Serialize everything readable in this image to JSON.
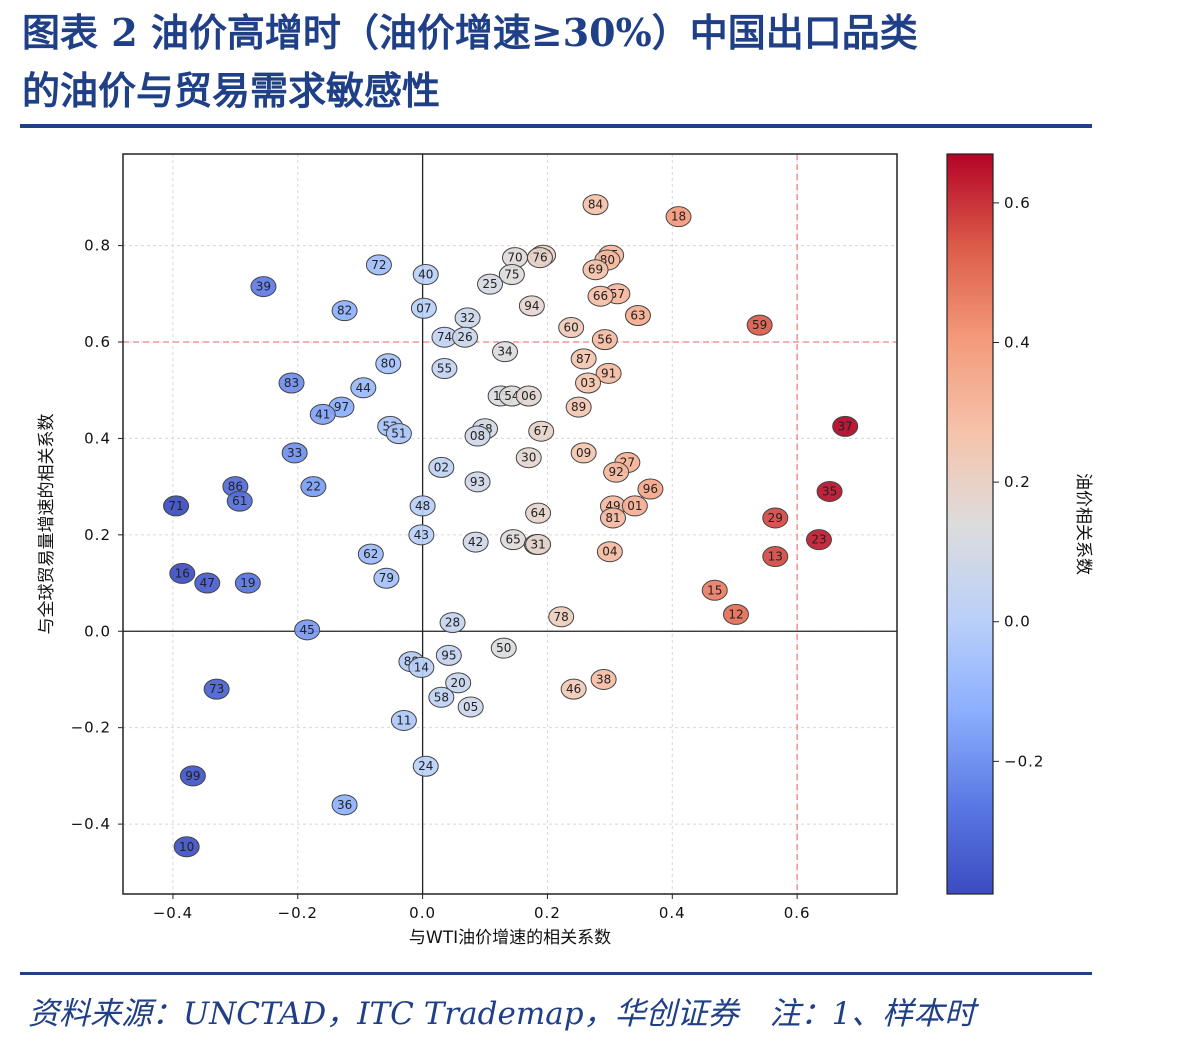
{
  "header": {
    "title_line1": "图表 2 油价高增时（油价增速≥30%）中国出口品类",
    "title_line2": "的油价与贸易需求敏感性"
  },
  "footer": {
    "source": "资料来源：UNCTAD，ITC Trademap，华创证券　注：1、样本时"
  },
  "chart_data": {
    "type": "scatter",
    "xlabel": "与WTI油价增速的相关系数",
    "ylabel": "与全球贸易量增速的相关系数",
    "colorbar_label": "油价相关系数",
    "xlim": [
      -0.48,
      0.76
    ],
    "ylim": [
      -0.545,
      0.99
    ],
    "xticks": [
      -0.4,
      -0.2,
      0.0,
      0.2,
      0.4,
      0.6
    ],
    "yticks": [
      -0.4,
      -0.2,
      0.0,
      0.2,
      0.4,
      0.6,
      0.8
    ],
    "colorbar_range": [
      -0.39,
      0.67
    ],
    "colorbar_ticks": [
      -0.2,
      0.0,
      0.2,
      0.4,
      0.6
    ],
    "colormap": [
      "#3b4cc0",
      "#dddddd",
      "#b40426"
    ],
    "reference_lines": {
      "x": 0.6,
      "y": 0.6,
      "color": "#f08080"
    },
    "grid": true,
    "points": [
      {
        "label": "84",
        "x": 0.277,
        "y": 0.885
      },
      {
        "label": "18",
        "x": 0.41,
        "y": 0.86
      },
      {
        "label": "77",
        "x": 0.193,
        "y": 0.78
      },
      {
        "label": "76",
        "x": 0.188,
        "y": 0.775
      },
      {
        "label": "70",
        "x": 0.148,
        "y": 0.775
      },
      {
        "label": "85",
        "x": 0.302,
        "y": 0.78
      },
      {
        "label": "80",
        "x": 0.296,
        "y": 0.77
      },
      {
        "label": "69",
        "x": 0.277,
        "y": 0.75
      },
      {
        "label": "72",
        "x": -0.07,
        "y": 0.76
      },
      {
        "label": "40",
        "x": 0.005,
        "y": 0.74
      },
      {
        "label": "75",
        "x": 0.143,
        "y": 0.74
      },
      {
        "label": "25",
        "x": 0.108,
        "y": 0.72
      },
      {
        "label": "39",
        "x": -0.255,
        "y": 0.715
      },
      {
        "label": "57",
        "x": 0.312,
        "y": 0.7
      },
      {
        "label": "66",
        "x": 0.285,
        "y": 0.695
      },
      {
        "label": "94",
        "x": 0.175,
        "y": 0.675
      },
      {
        "label": "07",
        "x": 0.002,
        "y": 0.67
      },
      {
        "label": "82",
        "x": -0.125,
        "y": 0.665
      },
      {
        "label": "32",
        "x": 0.072,
        "y": 0.65
      },
      {
        "label": "63",
        "x": 0.345,
        "y": 0.655
      },
      {
        "label": "59",
        "x": 0.54,
        "y": 0.635
      },
      {
        "label": "60",
        "x": 0.238,
        "y": 0.63
      },
      {
        "label": "74",
        "x": 0.035,
        "y": 0.61
      },
      {
        "label": "26",
        "x": 0.068,
        "y": 0.61
      },
      {
        "label": "56",
        "x": 0.292,
        "y": 0.605
      },
      {
        "label": "34",
        "x": 0.132,
        "y": 0.58
      },
      {
        "label": "87",
        "x": 0.258,
        "y": 0.565
      },
      {
        "label": "80",
        "x": -0.055,
        "y": 0.555
      },
      {
        "label": "55",
        "x": 0.035,
        "y": 0.545
      },
      {
        "label": "91",
        "x": 0.298,
        "y": 0.535
      },
      {
        "label": "83",
        "x": -0.21,
        "y": 0.515
      },
      {
        "label": "03",
        "x": 0.265,
        "y": 0.515
      },
      {
        "label": "44",
        "x": -0.095,
        "y": 0.505
      },
      {
        "label": "15",
        "x": 0.125,
        "y": 0.488
      },
      {
        "label": "54",
        "x": 0.143,
        "y": 0.488
      },
      {
        "label": "06",
        "x": 0.17,
        "y": 0.488
      },
      {
        "label": "89",
        "x": 0.25,
        "y": 0.465
      },
      {
        "label": "97",
        "x": -0.13,
        "y": 0.465
      },
      {
        "label": "41",
        "x": -0.16,
        "y": 0.45
      },
      {
        "label": "53",
        "x": -0.052,
        "y": 0.425
      },
      {
        "label": "51",
        "x": -0.038,
        "y": 0.41
      },
      {
        "label": "68",
        "x": 0.1,
        "y": 0.42
      },
      {
        "label": "67",
        "x": 0.19,
        "y": 0.415
      },
      {
        "label": "08",
        "x": 0.088,
        "y": 0.405
      },
      {
        "label": "33",
        "x": -0.205,
        "y": 0.37
      },
      {
        "label": "09",
        "x": 0.258,
        "y": 0.37
      },
      {
        "label": "30",
        "x": 0.17,
        "y": 0.36
      },
      {
        "label": "27",
        "x": 0.328,
        "y": 0.35
      },
      {
        "label": "02",
        "x": 0.03,
        "y": 0.34
      },
      {
        "label": "92",
        "x": 0.31,
        "y": 0.33
      },
      {
        "label": "93",
        "x": 0.088,
        "y": 0.31
      },
      {
        "label": "22",
        "x": -0.175,
        "y": 0.3
      },
      {
        "label": "86",
        "x": -0.3,
        "y": 0.3
      },
      {
        "label": "96",
        "x": 0.365,
        "y": 0.295
      },
      {
        "label": "61",
        "x": -0.293,
        "y": 0.27
      },
      {
        "label": "71",
        "x": -0.395,
        "y": 0.26
      },
      {
        "label": "48",
        "x": 0.0,
        "y": 0.26
      },
      {
        "label": "49",
        "x": 0.305,
        "y": 0.26
      },
      {
        "label": "01",
        "x": 0.34,
        "y": 0.26
      },
      {
        "label": "64",
        "x": 0.185,
        "y": 0.245
      },
      {
        "label": "81",
        "x": 0.305,
        "y": 0.235
      },
      {
        "label": "29",
        "x": 0.565,
        "y": 0.235
      },
      {
        "label": "43",
        "x": -0.002,
        "y": 0.2
      },
      {
        "label": "65",
        "x": 0.145,
        "y": 0.19
      },
      {
        "label": "42",
        "x": 0.085,
        "y": 0.185
      },
      {
        "label": "23",
        "x": 0.635,
        "y": 0.19
      },
      {
        "label": "21",
        "x": 0.183,
        "y": 0.18
      },
      {
        "label": "31",
        "x": 0.185,
        "y": 0.18
      },
      {
        "label": "62",
        "x": -0.083,
        "y": 0.16
      },
      {
        "label": "04",
        "x": 0.3,
        "y": 0.165
      },
      {
        "label": "13",
        "x": 0.565,
        "y": 0.155
      },
      {
        "label": "16",
        "x": -0.385,
        "y": 0.12
      },
      {
        "label": "79",
        "x": -0.058,
        "y": 0.11
      },
      {
        "label": "47",
        "x": -0.345,
        "y": 0.1
      },
      {
        "label": "19",
        "x": -0.28,
        "y": 0.1
      },
      {
        "label": "15",
        "x": 0.468,
        "y": 0.085
      },
      {
        "label": "12",
        "x": 0.502,
        "y": 0.035
      },
      {
        "label": "78",
        "x": 0.222,
        "y": 0.03
      },
      {
        "label": "28",
        "x": 0.048,
        "y": 0.018
      },
      {
        "label": "45",
        "x": -0.185,
        "y": 0.003
      },
      {
        "label": "50",
        "x": 0.13,
        "y": -0.035
      },
      {
        "label": "95",
        "x": 0.042,
        "y": -0.05
      },
      {
        "label": "88",
        "x": -0.018,
        "y": -0.063
      },
      {
        "label": "14",
        "x": -0.002,
        "y": -0.075
      },
      {
        "label": "38",
        "x": 0.29,
        "y": -0.1
      },
      {
        "label": "20",
        "x": 0.057,
        "y": -0.107
      },
      {
        "label": "46",
        "x": 0.242,
        "y": -0.12
      },
      {
        "label": "73",
        "x": -0.33,
        "y": -0.12
      },
      {
        "label": "58",
        "x": 0.03,
        "y": -0.137
      },
      {
        "label": "05",
        "x": 0.077,
        "y": -0.157
      },
      {
        "label": "11",
        "x": -0.03,
        "y": -0.185
      },
      {
        "label": "24",
        "x": 0.005,
        "y": -0.28
      },
      {
        "label": "99",
        "x": -0.368,
        "y": -0.3
      },
      {
        "label": "36",
        "x": -0.125,
        "y": -0.36
      },
      {
        "label": "10",
        "x": -0.378,
        "y": -0.447
      },
      {
        "label": "37",
        "x": 0.677,
        "y": 0.425
      },
      {
        "label": "35",
        "x": 0.652,
        "y": 0.29
      }
    ]
  }
}
